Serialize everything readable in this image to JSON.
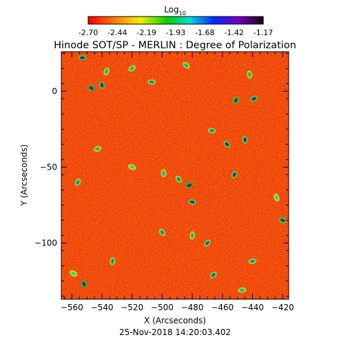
{
  "chart_data": {
    "type": "heatmap",
    "title": "Hinode SOT/SP - MERLIN : Degree of Polarization",
    "xlabel": "X (Arcseconds)",
    "ylabel": "Y (Arcseconds)",
    "footer": "25-Nov-2018 14:20:03.402",
    "xlim": [
      -567,
      -416
    ],
    "ylim": [
      -137,
      26
    ],
    "x_ticks": [
      -560,
      -540,
      -520,
      -500,
      -480,
      -460,
      -440,
      -420
    ],
    "y_ticks": [
      0,
      -50,
      -100
    ],
    "colorbar": {
      "title_base": "Log",
      "title_sub": "10",
      "scale": "rainbow",
      "range": [
        -2.7,
        -1.17
      ],
      "tick_labels": [
        "-2.70",
        "-2.44",
        "-2.19",
        "-1.93",
        "-1.68",
        "-1.42",
        "-1.17"
      ]
    },
    "colors": {
      "axis": "#000000",
      "background": "#ffffff",
      "dominant_field": "#f04010",
      "feature_hue": "#0028ff"
    },
    "features": [
      {
        "x": -553,
        "y": 22,
        "value": -1.55
      },
      {
        "x": -547,
        "y": 2,
        "value": -1.45
      },
      {
        "x": -540,
        "y": 4,
        "value": -1.55
      },
      {
        "x": -537,
        "y": 13,
        "value": -1.75
      },
      {
        "x": -520,
        "y": 15,
        "value": -1.75
      },
      {
        "x": -507,
        "y": 6,
        "value": -1.7
      },
      {
        "x": -484,
        "y": 17,
        "value": -1.75
      },
      {
        "x": -442,
        "y": 11,
        "value": -1.75
      },
      {
        "x": -451,
        "y": -6,
        "value": -1.5
      },
      {
        "x": -439,
        "y": -5,
        "value": -1.55
      },
      {
        "x": -467,
        "y": -26,
        "value": -1.7
      },
      {
        "x": -457,
        "y": -35,
        "value": -1.6
      },
      {
        "x": -445,
        "y": -32,
        "value": -1.6
      },
      {
        "x": -452,
        "y": -55,
        "value": -1.6
      },
      {
        "x": -482,
        "y": -62,
        "value": -1.45
      },
      {
        "x": -480,
        "y": -73,
        "value": -1.6
      },
      {
        "x": -489,
        "y": -58,
        "value": -1.7
      },
      {
        "x": -499,
        "y": -54,
        "value": -1.75
      },
      {
        "x": -556,
        "y": -60,
        "value": -1.7
      },
      {
        "x": -543,
        "y": -38,
        "value": -1.75
      },
      {
        "x": -520,
        "y": -50,
        "value": -1.8
      },
      {
        "x": -500,
        "y": -93,
        "value": -1.7
      },
      {
        "x": -480,
        "y": -95,
        "value": -1.75
      },
      {
        "x": -470,
        "y": -100,
        "value": -1.65
      },
      {
        "x": -440,
        "y": -112,
        "value": -1.7
      },
      {
        "x": -420,
        "y": -85,
        "value": -1.55
      },
      {
        "x": -552,
        "y": -127,
        "value": -1.45
      },
      {
        "x": -533,
        "y": -112,
        "value": -1.7
      },
      {
        "x": -466,
        "y": -121,
        "value": -1.65
      },
      {
        "x": -447,
        "y": -131,
        "value": -1.75
      },
      {
        "x": -559,
        "y": -120,
        "value": -1.8
      },
      {
        "x": -424,
        "y": -70,
        "value": -1.8
      }
    ]
  }
}
